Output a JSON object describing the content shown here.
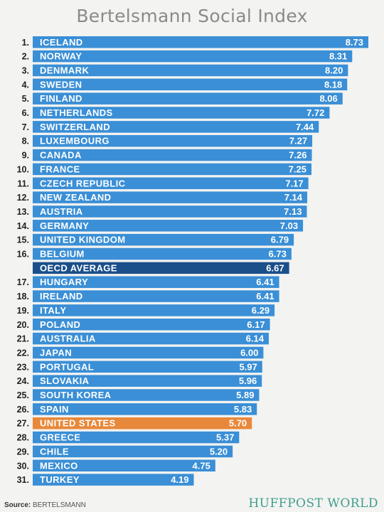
{
  "colors": {
    "bar": "#3a8fd6",
    "oecd": "#1a4f8a",
    "us": "#e8883a",
    "brand": "#3f9e8c"
  },
  "footer": {
    "source_label": "Source:",
    "source_value": "BERTELSMANN"
  },
  "brand": "HUFFPOST WORLD",
  "chart_data": {
    "type": "bar",
    "orientation": "horizontal",
    "title": "Bertelsmann Social Index",
    "rows": [
      {
        "rank": "1.",
        "name": "ICELAND",
        "value": 8.73
      },
      {
        "rank": "2.",
        "name": "NORWAY",
        "value": 8.31
      },
      {
        "rank": "3.",
        "name": "DENMARK",
        "value": 8.2
      },
      {
        "rank": "4.",
        "name": "SWEDEN",
        "value": 8.18
      },
      {
        "rank": "5.",
        "name": "FINLAND",
        "value": 8.06
      },
      {
        "rank": "6.",
        "name": "NETHERLANDS",
        "value": 7.72
      },
      {
        "rank": "7.",
        "name": "SWITZERLAND",
        "value": 7.44
      },
      {
        "rank": "8.",
        "name": "LUXEMBOURG",
        "value": 7.27
      },
      {
        "rank": "9.",
        "name": "CANADA",
        "value": 7.26
      },
      {
        "rank": "10.",
        "name": "FRANCE",
        "value": 7.25
      },
      {
        "rank": "11.",
        "name": "CZECH REPUBLIC",
        "value": 7.17
      },
      {
        "rank": "12.",
        "name": "NEW ZEALAND",
        "value": 7.14
      },
      {
        "rank": "13.",
        "name": "AUSTRIA",
        "value": 7.13
      },
      {
        "rank": "14.",
        "name": "GERMANY",
        "value": 7.03
      },
      {
        "rank": "15.",
        "name": "UNITED KINGDOM",
        "value": 6.79
      },
      {
        "rank": "16.",
        "name": "BELGIUM",
        "value": 6.73
      },
      {
        "rank": "",
        "name": "OECD AVERAGE",
        "value": 6.67,
        "highlight": "oecd"
      },
      {
        "rank": "17.",
        "name": "HUNGARY",
        "value": 6.41
      },
      {
        "rank": "18.",
        "name": "IRELAND",
        "value": 6.41
      },
      {
        "rank": "19.",
        "name": "ITALY",
        "value": 6.29
      },
      {
        "rank": "20.",
        "name": "POLAND",
        "value": 6.17
      },
      {
        "rank": "21.",
        "name": "AUSTRALIA",
        "value": 6.14
      },
      {
        "rank": "22.",
        "name": "JAPAN",
        "value": 6.0
      },
      {
        "rank": "23.",
        "name": "PORTUGAL",
        "value": 5.97
      },
      {
        "rank": "24.",
        "name": "SLOVAKIA",
        "value": 5.96
      },
      {
        "rank": "25.",
        "name": "SOUTH KOREA",
        "value": 5.89
      },
      {
        "rank": "26.",
        "name": "SPAIN",
        "value": 5.83
      },
      {
        "rank": "27.",
        "name": "UNITED STATES",
        "value": 5.7,
        "highlight": "us"
      },
      {
        "rank": "28.",
        "name": "GREECE",
        "value": 5.37
      },
      {
        "rank": "29.",
        "name": "CHILE",
        "value": 5.2
      },
      {
        "rank": "30.",
        "name": "MEXICO",
        "value": 4.75
      },
      {
        "rank": "31.",
        "name": "TURKEY",
        "value": 4.19
      }
    ]
  }
}
